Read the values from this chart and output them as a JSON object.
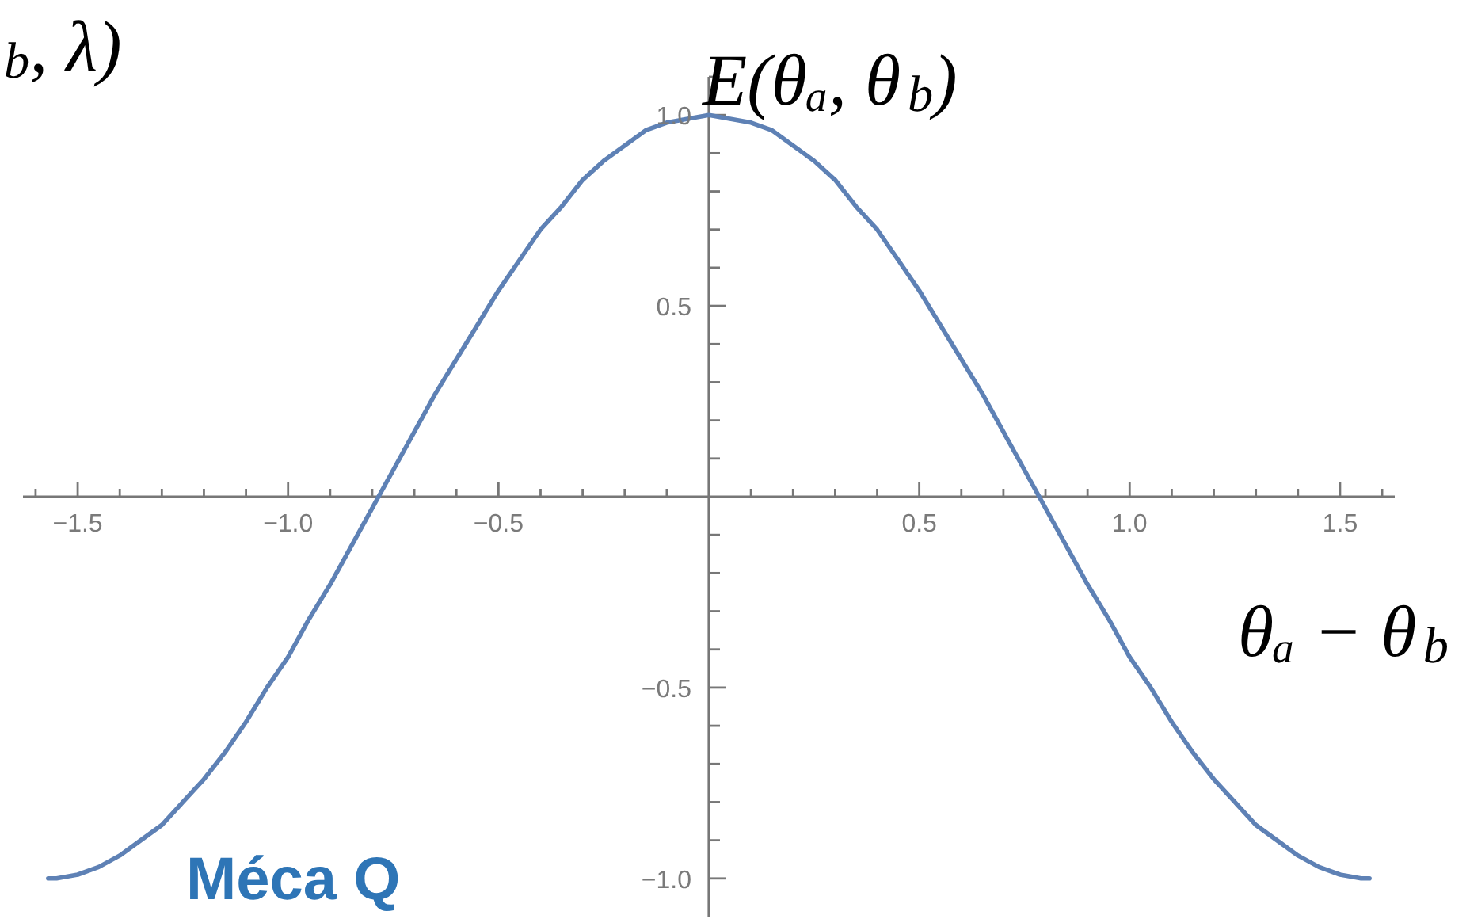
{
  "chart_data": {
    "type": "line",
    "xlabel": "θₐ − θ$_{b}$",
    "ylabel": "E(θₐ, θ$_{b}$)",
    "annotations": [
      "$_{b}$, λ)",
      "Méca Q"
    ],
    "x": [
      -1.57,
      -1.55,
      -1.5,
      -1.45,
      -1.4,
      -1.35,
      -1.3,
      -1.25,
      -1.2,
      -1.15,
      -1.1,
      -1.05,
      -1.0,
      -0.95,
      -0.9,
      -0.85,
      -0.8,
      -0.75,
      -0.7,
      -0.65,
      -0.6,
      -0.55,
      -0.5,
      -0.45,
      -0.4,
      -0.35,
      -0.3,
      -0.25,
      -0.2,
      -0.15,
      -0.1,
      -0.05,
      0,
      0.05,
      0.1,
      0.15,
      0.2,
      0.25,
      0.3,
      0.35,
      0.4,
      0.45,
      0.5,
      0.55,
      0.6,
      0.65,
      0.7,
      0.75,
      0.8,
      0.85,
      0.9,
      0.95,
      1.0,
      1.05,
      1.1,
      1.15,
      1.2,
      1.25,
      1.3,
      1.35,
      1.4,
      1.45,
      1.5,
      1.55,
      1.57
    ],
    "series": [
      {
        "color": "#5e81b5",
        "values": [
          -1,
          -1,
          -0.99,
          -0.97,
          -0.94,
          -0.9,
          -0.86,
          -0.8,
          -0.74,
          -0.67,
          -0.59,
          -0.5,
          -0.42,
          -0.32,
          -0.23,
          -0.13,
          -0.03,
          0.07,
          0.17,
          0.27,
          0.36,
          0.45,
          0.54,
          0.62,
          0.7,
          0.76,
          0.83,
          0.88,
          0.92,
          0.96,
          0.98,
          0.99,
          1,
          0.99,
          0.98,
          0.96,
          0.92,
          0.88,
          0.83,
          0.76,
          0.7,
          0.62,
          0.54,
          0.45,
          0.36,
          0.27,
          0.17,
          0.07,
          -0.03,
          -0.13,
          -0.23,
          -0.32,
          -0.42,
          -0.5,
          -0.59,
          -0.67,
          -0.74,
          -0.8,
          -0.86,
          -0.9,
          -0.94,
          -0.97,
          -0.99,
          -1,
          -1
        ]
      }
    ],
    "xlim": [
      -1.63,
      1.63
    ],
    "ylim": [
      -1.1,
      1.1
    ],
    "xticks": [
      {
        "value": -1.6,
        "label": null
      },
      {
        "value": -1.5,
        "label": "−1.5"
      },
      {
        "value": -1.4,
        "label": null
      },
      {
        "value": -1.3,
        "label": null
      },
      {
        "value": -1.2,
        "label": null
      },
      {
        "value": -1.1,
        "label": null
      },
      {
        "value": -1.0,
        "label": "−1.0"
      },
      {
        "value": -0.9,
        "label": null
      },
      {
        "value": -0.8,
        "label": null
      },
      {
        "value": -0.7,
        "label": null
      },
      {
        "value": -0.6,
        "label": null
      },
      {
        "value": -0.5,
        "label": "−0.5"
      },
      {
        "value": -0.4,
        "label": null
      },
      {
        "value": -0.3,
        "label": null
      },
      {
        "value": -0.2,
        "label": null
      },
      {
        "value": -0.1,
        "label": null
      },
      {
        "value": 0.1,
        "label": null
      },
      {
        "value": 0.2,
        "label": null
      },
      {
        "value": 0.3,
        "label": null
      },
      {
        "value": 0.4,
        "label": null
      },
      0.5,
      {
        "value": 0.6,
        "label": null
      },
      {
        "value": 0.7,
        "label": null
      },
      {
        "value": 0.8,
        "label": null
      },
      {
        "value": 0.9,
        "label": null
      },
      {
        "value": 1.0,
        "label": "1.0"
      },
      {
        "value": 1.1,
        "label": null
      },
      {
        "value": 1.2,
        "label": null
      },
      {
        "value": 1.3,
        "label": null
      },
      {
        "value": 1.4,
        "label": null
      },
      1.5,
      {
        "value": 1.6,
        "label": null
      }
    ],
    "yticks": [
      {
        "value": -1.0,
        "label": "−1.0"
      },
      {
        "value": -0.9,
        "label": null
      },
      {
        "value": -0.8,
        "label": null
      },
      {
        "value": -0.7,
        "label": null
      },
      {
        "value": -0.6,
        "label": null
      },
      {
        "value": -0.5,
        "label": "−0.5"
      },
      {
        "value": -0.4,
        "label": null
      },
      {
        "value": -0.3,
        "label": null
      },
      {
        "value": -0.2,
        "label": null
      },
      {
        "value": -0.1,
        "label": null
      },
      {
        "value": 0.1,
        "label": null
      },
      {
        "value": 0.2,
        "label": null
      },
      {
        "value": 0.3,
        "label": null
      },
      {
        "value": 0.4,
        "label": null
      },
      0.5,
      {
        "value": 0.6,
        "label": null
      },
      {
        "value": 0.7,
        "label": null
      },
      {
        "value": 0.8,
        "label": null
      },
      {
        "value": 0.9,
        "label": null
      },
      {
        "value": 1.0,
        "label": "1.0"
      },
      {
        "value": 1.1,
        "label": null
      }
    ],
    "line_style": "solid"
  }
}
